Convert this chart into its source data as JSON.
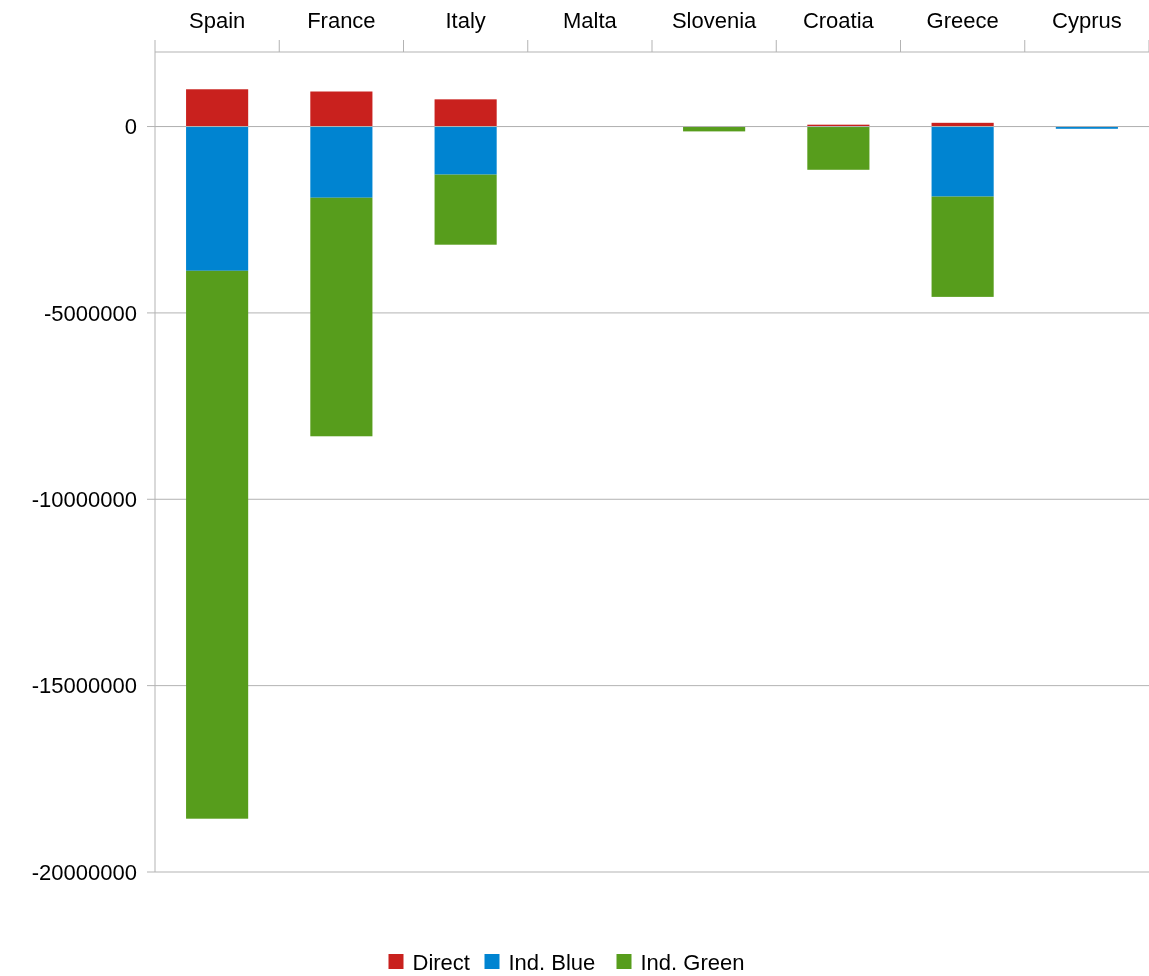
{
  "chart_data": {
    "type": "bar",
    "stacked": true,
    "categories": [
      "Spain",
      "France",
      "Italy",
      "Malta",
      "Slovenia",
      "Croatia",
      "Greece",
      "Cyprus"
    ],
    "series": [
      {
        "name": "Direct",
        "color": "#c9211e",
        "values": [
          1000000,
          940000,
          730000,
          null,
          null,
          50000,
          100000,
          null
        ]
      },
      {
        "name": "Ind. Blue",
        "color": "#0084d1",
        "values": [
          -3870000,
          -1910000,
          -1290000,
          null,
          null,
          null,
          -1880000,
          -60000
        ]
      },
      {
        "name": "Ind. Green",
        "color": "#579d1c",
        "values": [
          -14700000,
          -6400000,
          -1880000,
          null,
          -130000,
          -1160000,
          -2690000,
          null
        ]
      }
    ],
    "ylim": [
      -20000000,
      2000000
    ],
    "yticks": [
      0,
      -5000000,
      -10000000,
      -15000000,
      -20000000
    ],
    "grid": "y",
    "legend": "bottom"
  }
}
